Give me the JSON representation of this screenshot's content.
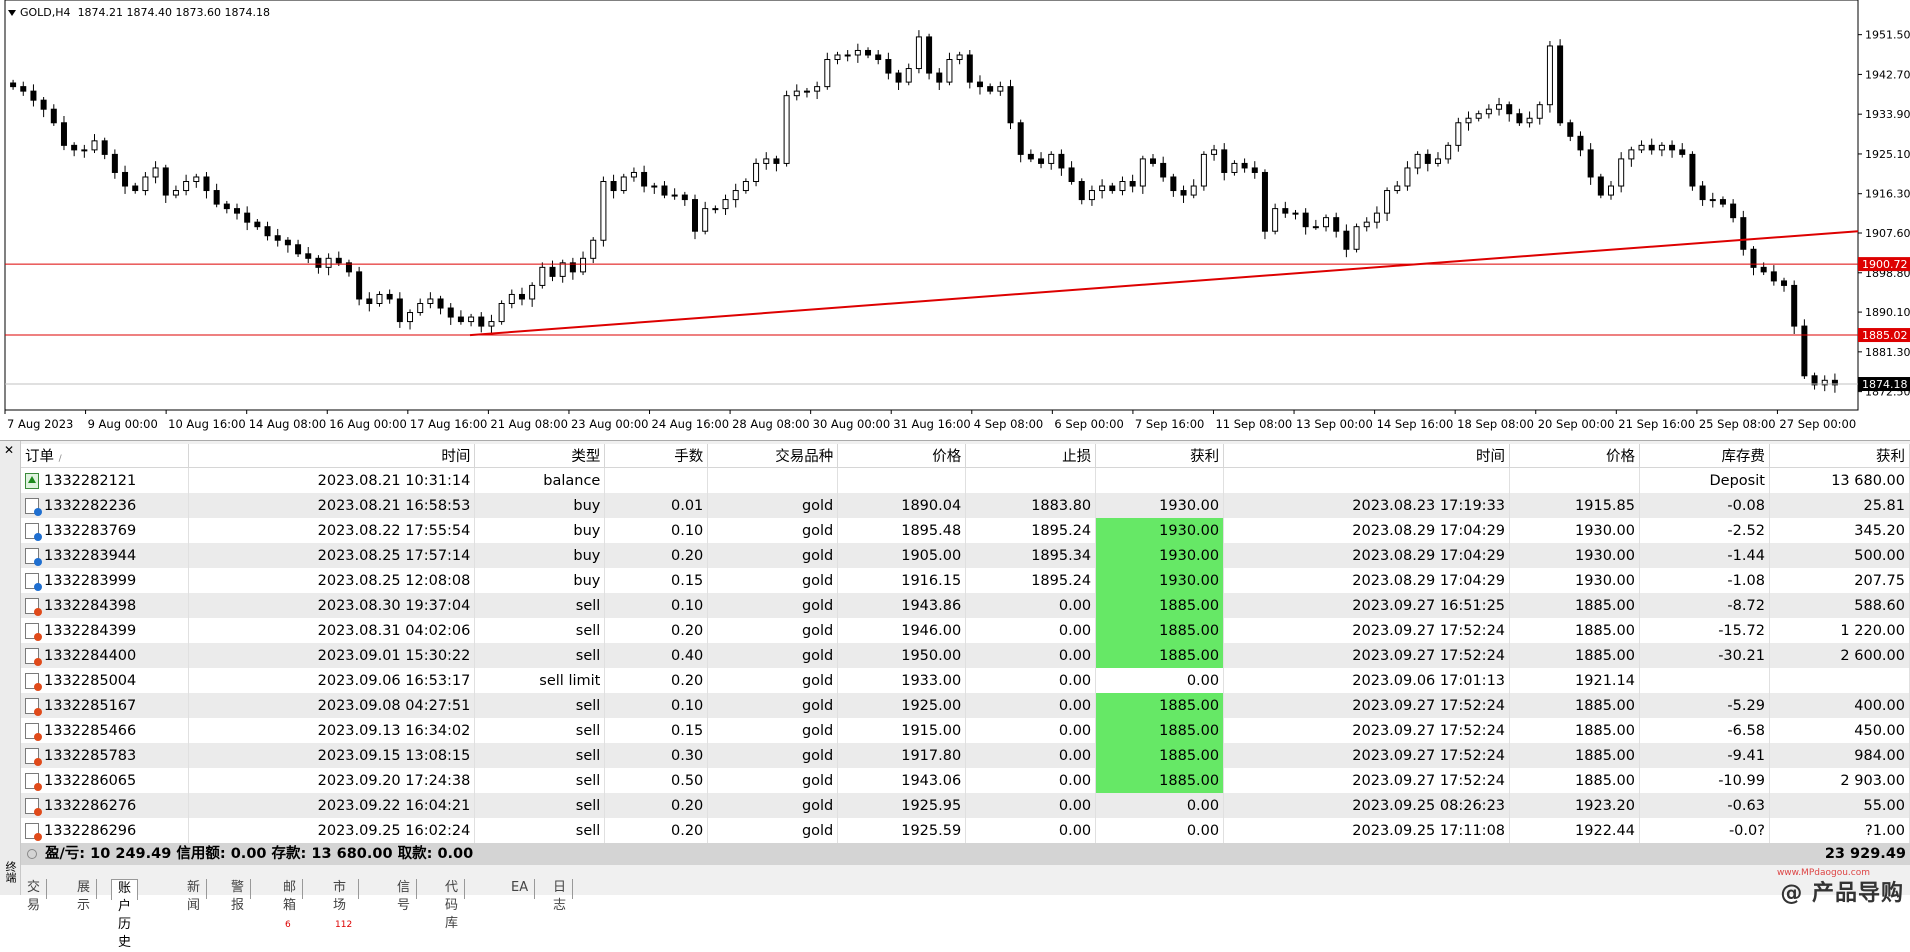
{
  "chart_header": {
    "symbol_tf": "GOLD,H4",
    "ohlc": "1874.21 1874.40 1873.60 1874.18"
  },
  "chart_data": {
    "type": "candlestick",
    "symbol": "GOLD",
    "timeframe": "H4",
    "price_scale": [
      "1951.50",
      "1942.70",
      "1933.90",
      "1925.10",
      "1916.30",
      "1907.60",
      "1898.80",
      "1890.10",
      "1881.30",
      "1872.50"
    ],
    "price_range": [
      1870.2,
      1957.4
    ],
    "time_labels": [
      "7 Aug 2023",
      "9 Aug 00:00",
      "10 Aug 16:00",
      "14 Aug 08:00",
      "16 Aug 00:00",
      "17 Aug 16:00",
      "21 Aug 08:00",
      "23 Aug 00:00",
      "24 Aug 16:00",
      "28 Aug 08:00",
      "30 Aug 00:00",
      "31 Aug 16:00",
      "4 Sep 08:00",
      "6 Sep 00:00",
      "7 Sep 16:00",
      "11 Sep 08:00",
      "13 Sep 00:00",
      "14 Sep 16:00",
      "18 Sep 08:00",
      "20 Sep 00:00",
      "21 Sep 16:00",
      "25 Sep 08:00",
      "27 Sep 00:00"
    ],
    "closes": [
      1940,
      1939,
      1937,
      1935,
      1932,
      1927,
      1926,
      1926,
      1928,
      1925,
      1921,
      1918,
      1917,
      1920,
      1922,
      1916,
      1917,
      1919,
      1920,
      1917,
      1914,
      1913,
      1912,
      1910,
      1909,
      1907,
      1906,
      1905,
      1903,
      1902,
      1900,
      1902,
      1901,
      1899,
      1893,
      1892,
      1894,
      1893,
      1888,
      1890,
      1892,
      1893,
      1891,
      1889,
      1888,
      1889,
      1887,
      1888,
      1892,
      1894,
      1893,
      1896,
      1900,
      1898,
      1901,
      1899,
      1902,
      1906,
      1919,
      1917,
      1920,
      1921,
      1918,
      1918,
      1916,
      1916,
      1915,
      1908,
      1913,
      1913,
      1915,
      1917,
      1919,
      1923,
      1924,
      1923,
      1938,
      1939,
      1939,
      1940,
      1946,
      1947,
      1947,
      1948,
      1947,
      1946,
      1943,
      1941,
      1944,
      1951,
      1943,
      1941,
      1946,
      1947,
      1941,
      1940,
      1939,
      1940,
      1932,
      1925,
      1924,
      1923,
      1925,
      1922,
      1919,
      1915,
      1917,
      1918,
      1917,
      1919,
      1918,
      1924,
      1923,
      1920,
      1917,
      1916,
      1918,
      1925,
      1926,
      1921,
      1923,
      1922,
      1921,
      1908,
      1913,
      1912,
      1912,
      1909,
      1909,
      1911,
      1908,
      1904,
      1909,
      1910,
      1912,
      1917,
      1918,
      1922,
      1925,
      1923,
      1924,
      1927,
      1932,
      1933,
      1934,
      1935,
      1936,
      1934,
      1932,
      1933,
      1936,
      1949,
      1932,
      1929,
      1926,
      1920,
      1916,
      1918,
      1924,
      1926,
      1927,
      1926,
      1927,
      1926,
      1925,
      1918,
      1915,
      1915,
      1914,
      1911,
      1904,
      1900,
      1899,
      1897,
      1896,
      1887,
      1876,
      1874,
      1875,
      1874
    ],
    "horizontal_lines": [
      {
        "price": "1900.72",
        "color": "#dd0000"
      },
      {
        "price": "1885.02",
        "color": "#dd0000"
      }
    ],
    "current_price": "1874.18",
    "trendline": {
      "from": {
        "time": "18 Aug",
        "price": 1885
      },
      "to": {
        "time": "27 Sep",
        "price": 1908
      },
      "color": "#dd0000"
    }
  },
  "terminal": {
    "close_glyph": "✕",
    "side_label": "终端",
    "headers": [
      "订单",
      "时间",
      "类型",
      "手数",
      "交易品种",
      "价格",
      "止损",
      "获利",
      "时间",
      "价格",
      "库存费",
      "获利"
    ],
    "sort_glyph": "/",
    "rows": [
      {
        "id": "1332282121",
        "time": "2023.08.21 10:31:14",
        "type": "balance",
        "lots": "",
        "symbol": "",
        "price": "",
        "sl": "",
        "tp": "",
        "close_time": "",
        "close_price": "",
        "swap": "Deposit",
        "profit": "13 680.00",
        "icon": "balance",
        "tp_hl": false
      },
      {
        "id": "1332282236",
        "time": "2023.08.21 16:58:53",
        "type": "buy",
        "lots": "0.01",
        "symbol": "gold",
        "price": "1890.04",
        "sl": "1883.80",
        "tp": "1930.00",
        "close_time": "2023.08.23 17:19:33",
        "close_price": "1915.85",
        "swap": "-0.08",
        "profit": "25.81",
        "icon": "buy",
        "tp_hl": false
      },
      {
        "id": "1332283769",
        "time": "2023.08.22 17:55:54",
        "type": "buy",
        "lots": "0.10",
        "symbol": "gold",
        "price": "1895.48",
        "sl": "1895.24",
        "tp": "1930.00",
        "close_time": "2023.08.29 17:04:29",
        "close_price": "1930.00",
        "swap": "-2.52",
        "profit": "345.20",
        "icon": "buy",
        "tp_hl": true
      },
      {
        "id": "1332283944",
        "time": "2023.08.25 17:57:14",
        "type": "buy",
        "lots": "0.20",
        "symbol": "gold",
        "price": "1905.00",
        "sl": "1895.34",
        "tp": "1930.00",
        "close_time": "2023.08.29 17:04:29",
        "close_price": "1930.00",
        "swap": "-1.44",
        "profit": "500.00",
        "icon": "buy",
        "tp_hl": true
      },
      {
        "id": "1332283999",
        "time": "2023.08.25 12:08:08",
        "type": "buy",
        "lots": "0.15",
        "symbol": "gold",
        "price": "1916.15",
        "sl": "1895.24",
        "tp": "1930.00",
        "close_time": "2023.08.29 17:04:29",
        "close_price": "1930.00",
        "swap": "-1.08",
        "profit": "207.75",
        "icon": "buy",
        "tp_hl": true
      },
      {
        "id": "1332284398",
        "time": "2023.08.30 19:37:04",
        "type": "sell",
        "lots": "0.10",
        "symbol": "gold",
        "price": "1943.86",
        "sl": "0.00",
        "tp": "1885.00",
        "close_time": "2023.09.27 16:51:25",
        "close_price": "1885.00",
        "swap": "-8.72",
        "profit": "588.60",
        "icon": "sell",
        "tp_hl": true
      },
      {
        "id": "1332284399",
        "time": "2023.08.31 04:02:06",
        "type": "sell",
        "lots": "0.20",
        "symbol": "gold",
        "price": "1946.00",
        "sl": "0.00",
        "tp": "1885.00",
        "close_time": "2023.09.27 17:52:24",
        "close_price": "1885.00",
        "swap": "-15.72",
        "profit": "1 220.00",
        "icon": "sell",
        "tp_hl": true
      },
      {
        "id": "1332284400",
        "time": "2023.09.01 15:30:22",
        "type": "sell",
        "lots": "0.40",
        "symbol": "gold",
        "price": "1950.00",
        "sl": "0.00",
        "tp": "1885.00",
        "close_time": "2023.09.27 17:52:24",
        "close_price": "1885.00",
        "swap": "-30.21",
        "profit": "2 600.00",
        "icon": "sell",
        "tp_hl": true
      },
      {
        "id": "1332285004",
        "time": "2023.09.06 16:53:17",
        "type": "sell limit",
        "lots": "0.20",
        "symbol": "gold",
        "price": "1933.00",
        "sl": "0.00",
        "tp": "0.00",
        "close_time": "2023.09.06 17:01:13",
        "close_price": "1921.14",
        "swap": "",
        "profit": "",
        "icon": "sell",
        "tp_hl": false
      },
      {
        "id": "1332285167",
        "time": "2023.09.08 04:27:51",
        "type": "sell",
        "lots": "0.10",
        "symbol": "gold",
        "price": "1925.00",
        "sl": "0.00",
        "tp": "1885.00",
        "close_time": "2023.09.27 17:52:24",
        "close_price": "1885.00",
        "swap": "-5.29",
        "profit": "400.00",
        "icon": "sell",
        "tp_hl": true
      },
      {
        "id": "1332285466",
        "time": "2023.09.13 16:34:02",
        "type": "sell",
        "lots": "0.15",
        "symbol": "gold",
        "price": "1915.00",
        "sl": "0.00",
        "tp": "1885.00",
        "close_time": "2023.09.27 17:52:24",
        "close_price": "1885.00",
        "swap": "-6.58",
        "profit": "450.00",
        "icon": "sell",
        "tp_hl": true
      },
      {
        "id": "1332285783",
        "time": "2023.09.15 13:08:15",
        "type": "sell",
        "lots": "0.30",
        "symbol": "gold",
        "price": "1917.80",
        "sl": "0.00",
        "tp": "1885.00",
        "close_time": "2023.09.27 17:52:24",
        "close_price": "1885.00",
        "swap": "-9.41",
        "profit": "984.00",
        "icon": "sell",
        "tp_hl": true
      },
      {
        "id": "1332286065",
        "time": "2023.09.20 17:24:38",
        "type": "sell",
        "lots": "0.50",
        "symbol": "gold",
        "price": "1943.06",
        "sl": "0.00",
        "tp": "1885.00",
        "close_time": "2023.09.27 17:52:24",
        "close_price": "1885.00",
        "swap": "-10.99",
        "profit": "2 903.00",
        "icon": "sell",
        "tp_hl": true
      },
      {
        "id": "1332286276",
        "time": "2023.09.22 16:04:21",
        "type": "sell",
        "lots": "0.20",
        "symbol": "gold",
        "price": "1925.95",
        "sl": "0.00",
        "tp": "0.00",
        "close_time": "2023.09.25 08:26:23",
        "close_price": "1923.20",
        "swap": "-0.63",
        "profit": "55.00",
        "icon": "sell",
        "tp_hl": false
      },
      {
        "id": "1332286296",
        "time": "2023.09.25 16:02:24",
        "type": "sell",
        "lots": "0.20",
        "symbol": "gold",
        "price": "1925.59",
        "sl": "0.00",
        "tp": "0.00",
        "close_time": "2023.09.25 17:11:08",
        "close_price": "1922.44",
        "swap": "-0.0?",
        "profit": "?1.00",
        "icon": "sell",
        "tp_hl": false
      }
    ],
    "summary": {
      "text": "盈/亏: 10 249.49  信用额: 0.00  存款: 13 680.00  取款: 0.00",
      "total": "23 929.49"
    },
    "tabs": [
      {
        "label": "交易",
        "badge": ""
      },
      {
        "label": "展示",
        "badge": ""
      },
      {
        "label": "账户历史",
        "badge": ""
      },
      {
        "label": "新闻",
        "badge": ""
      },
      {
        "label": "警报",
        "badge": ""
      },
      {
        "label": "邮箱",
        "badge": "6"
      },
      {
        "label": "市场",
        "badge": "112"
      },
      {
        "label": "信号",
        "badge": ""
      },
      {
        "label": "代码库",
        "badge": ""
      },
      {
        "label": "EA",
        "badge": ""
      },
      {
        "label": "日志",
        "badge": ""
      }
    ],
    "active_tab": "账户历史"
  },
  "watermark": {
    "text": "@ 产品导购",
    "url": "www.MPdaogou.com"
  },
  "colors": {
    "tp_highlight": "#66e866",
    "level_line": "#dd0000",
    "buy_icon": "#1f6fd0",
    "sell_icon": "#e04a1a"
  }
}
